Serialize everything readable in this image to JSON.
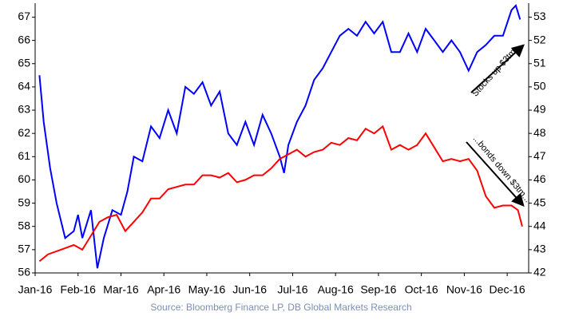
{
  "chart_data": {
    "type": "line",
    "source": "Source: Bloomberg Finance LP, DB Global Markets Research",
    "annotations": [
      "Stocks up $3tm...",
      "...bonds down $3tm..."
    ],
    "xlim": [
      0,
      11.5
    ],
    "xticks": [
      {
        "value": 0,
        "label": "Jan-16"
      },
      {
        "value": 1,
        "label": "Feb-16"
      },
      {
        "value": 2,
        "label": "Mar-16"
      },
      {
        "value": 3,
        "label": "Apr-16"
      },
      {
        "value": 4,
        "label": "May-16"
      },
      {
        "value": 5,
        "label": "Jun-16"
      },
      {
        "value": 6,
        "label": "Jul-16"
      },
      {
        "value": 7,
        "label": "Aug-16"
      },
      {
        "value": 8,
        "label": "Sep-16"
      },
      {
        "value": 9,
        "label": "Oct-16"
      },
      {
        "value": 10,
        "label": "Nov-16"
      },
      {
        "value": 11,
        "label": "Dec-16"
      }
    ],
    "ylim": [
      56,
      67.6
    ],
    "yticks": [
      56,
      57,
      58,
      59,
      60,
      61,
      62,
      63,
      64,
      65,
      66,
      67
    ],
    "y2lim": [
      42,
      53.6
    ],
    "y2ticks": [
      42,
      43,
      44,
      45,
      46,
      47,
      48,
      49,
      50,
      51,
      52,
      53
    ],
    "series": [
      {
        "color": "#0000ff",
        "x": [
          0.1,
          0.2,
          0.35,
          0.5,
          0.7,
          0.9,
          1.0,
          1.1,
          1.3,
          1.45,
          1.6,
          1.8,
          2.0,
          2.15,
          2.3,
          2.5,
          2.7,
          2.9,
          3.1,
          3.3,
          3.5,
          3.7,
          3.9,
          4.1,
          4.3,
          4.5,
          4.7,
          4.9,
          5.1,
          5.3,
          5.5,
          5.7,
          5.8,
          5.9,
          6.1,
          6.3,
          6.5,
          6.7,
          6.9,
          7.1,
          7.3,
          7.5,
          7.7,
          7.9,
          8.1,
          8.3,
          8.5,
          8.7,
          8.9,
          9.1,
          9.3,
          9.5,
          9.7,
          9.9,
          10.1,
          10.3,
          10.5,
          10.7,
          10.9,
          11.1,
          11.2,
          11.3
        ],
        "values": [
          64.5,
          62.5,
          60.5,
          59,
          57.5,
          57.8,
          58.5,
          57.5,
          58.7,
          56.2,
          57.5,
          58.7,
          58.5,
          59.5,
          61,
          60.8,
          62.3,
          61.8,
          63,
          62,
          64,
          63.7,
          64.2,
          63.2,
          63.8,
          62,
          61.5,
          62.5,
          61.5,
          62.8,
          62,
          61,
          60.3,
          61.5,
          62.5,
          63.2,
          64.3,
          64.8,
          65.5,
          66.2,
          66.5,
          66.2,
          66.8,
          66.3,
          66.8,
          65.5,
          65.5,
          66.3,
          65.5,
          66.5,
          66,
          65.5,
          66,
          65.5,
          64.7,
          65.5,
          65.8,
          66.2,
          66.2,
          67.3,
          67.5,
          66.9
        ]
      },
      {
        "color": "#ff0000",
        "axis": "y2",
        "x": [
          0.1,
          0.3,
          0.6,
          0.9,
          1.1,
          1.3,
          1.5,
          1.7,
          1.9,
          2.1,
          2.3,
          2.5,
          2.7,
          2.9,
          3.1,
          3.3,
          3.5,
          3.7,
          3.9,
          4.1,
          4.3,
          4.5,
          4.7,
          4.9,
          5.1,
          5.3,
          5.5,
          5.7,
          5.9,
          6.1,
          6.3,
          6.5,
          6.7,
          6.9,
          7.1,
          7.3,
          7.5,
          7.7,
          7.9,
          8.1,
          8.3,
          8.5,
          8.7,
          8.9,
          9.1,
          9.3,
          9.5,
          9.7,
          9.9,
          10.1,
          10.3,
          10.5,
          10.7,
          10.9,
          11.1,
          11.25,
          11.35
        ],
        "values": [
          42.5,
          42.8,
          43.0,
          43.2,
          43.0,
          43.6,
          44.2,
          44.4,
          44.5,
          43.8,
          44.2,
          44.6,
          45.2,
          45.2,
          45.6,
          45.7,
          45.8,
          45.8,
          46.2,
          46.2,
          46.1,
          46.3,
          45.9,
          46.0,
          46.2,
          46.2,
          46.5,
          46.9,
          47.1,
          47.3,
          47.0,
          47.2,
          47.3,
          47.6,
          47.5,
          47.8,
          47.7,
          48.2,
          48.0,
          48.3,
          47.3,
          47.5,
          47.3,
          47.5,
          48.0,
          47.4,
          46.8,
          46.9,
          46.8,
          46.9,
          46.4,
          45.3,
          44.8,
          44.9,
          44.9,
          44.7,
          44.0
        ]
      }
    ]
  }
}
